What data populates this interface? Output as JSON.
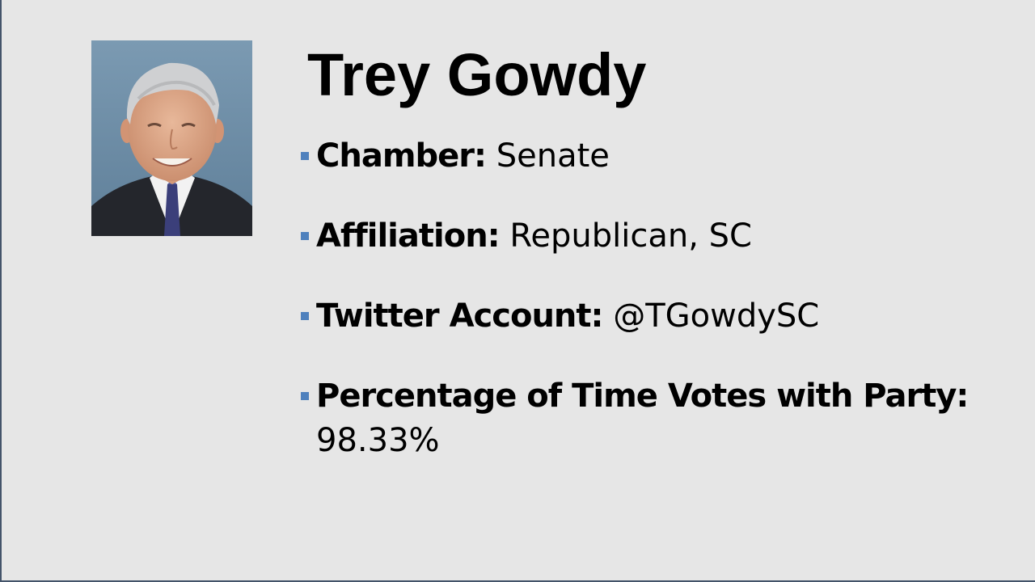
{
  "slide": {
    "title": "Trey Gowdy",
    "colors": {
      "background": "#e6e6e6",
      "bullet": "#4f81bd",
      "border": "#44546a"
    },
    "bullets": [
      {
        "label": "Chamber:",
        "value": "Senate"
      },
      {
        "label": "Affiliation:",
        "value": "Republican, SC"
      },
      {
        "label": "Twitter Account:",
        "value": "@TGowdySC"
      },
      {
        "label": "Percentage of Time Votes with Party:",
        "value": "98.33%"
      }
    ]
  }
}
